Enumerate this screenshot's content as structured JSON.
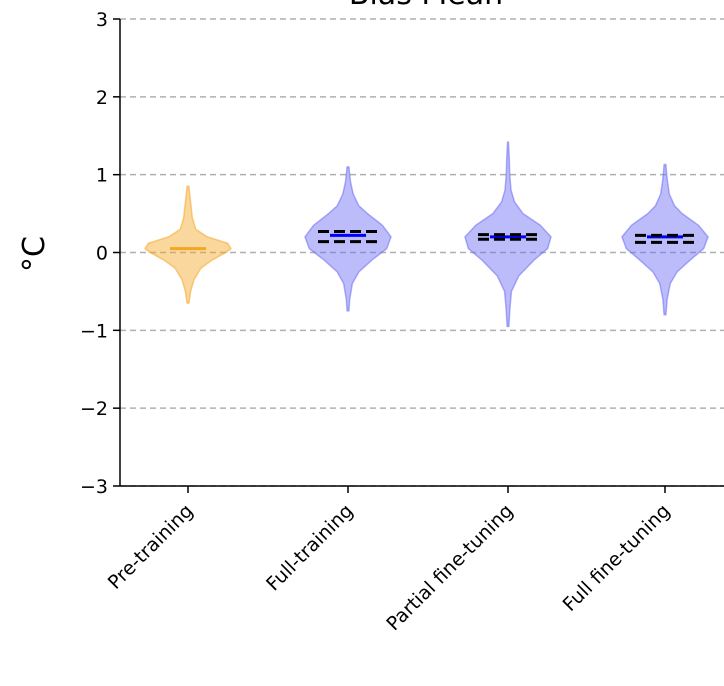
{
  "chart_data": {
    "type": "violin",
    "title": "Bias Mean",
    "ylabel": "°C",
    "xlabel": "",
    "ylim": [
      -3,
      3
    ],
    "yticks": [
      -3,
      -2,
      -1,
      0,
      1,
      2,
      3
    ],
    "ytick_labels": [
      "−3",
      "−2",
      "−1",
      "0",
      "1",
      "2",
      "3"
    ],
    "grid": "y-dashed",
    "categories": [
      "Pre-training",
      "Full-training",
      "Partial fine-tuning",
      "Full fine-tuning"
    ],
    "violins": [
      {
        "category": "Pre-training",
        "color": "#f5a623",
        "line_color": "#f5a623",
        "min": -0.65,
        "max": 0.85,
        "mean": 0.05,
        "quartiles": [],
        "density": [
          [
            -0.65,
            0.02
          ],
          [
            -0.5,
            0.06
          ],
          [
            -0.35,
            0.14
          ],
          [
            -0.2,
            0.3
          ],
          [
            -0.1,
            0.55
          ],
          [
            0.0,
            0.88
          ],
          [
            0.05,
            1.0
          ],
          [
            0.12,
            0.92
          ],
          [
            0.2,
            0.45
          ],
          [
            0.3,
            0.18
          ],
          [
            0.45,
            0.1
          ],
          [
            0.6,
            0.07
          ],
          [
            0.75,
            0.04
          ],
          [
            0.85,
            0.02
          ]
        ]
      },
      {
        "category": "Full-training",
        "color": "#6b6bf5",
        "line_color": "#0000ff",
        "min": -0.75,
        "max": 1.1,
        "mean": 0.22,
        "quartiles": [
          0.14,
          0.27
        ],
        "density": [
          [
            -0.75,
            0.02
          ],
          [
            -0.6,
            0.04
          ],
          [
            -0.4,
            0.1
          ],
          [
            -0.25,
            0.25
          ],
          [
            -0.1,
            0.55
          ],
          [
            0.05,
            0.9
          ],
          [
            0.2,
            1.0
          ],
          [
            0.35,
            0.8
          ],
          [
            0.5,
            0.45
          ],
          [
            0.6,
            0.25
          ],
          [
            0.75,
            0.12
          ],
          [
            0.9,
            0.06
          ],
          [
            1.0,
            0.04
          ],
          [
            1.1,
            0.02
          ]
        ]
      },
      {
        "category": "Partial fine-tuning",
        "color": "#6b6bf5",
        "line_color": "#0000ff",
        "min": -0.95,
        "max": 1.42,
        "mean": 0.2,
        "quartiles": [
          0.17,
          0.23
        ],
        "density": [
          [
            -0.95,
            0.02
          ],
          [
            -0.75,
            0.04
          ],
          [
            -0.5,
            0.08
          ],
          [
            -0.3,
            0.25
          ],
          [
            -0.1,
            0.6
          ],
          [
            0.05,
            0.92
          ],
          [
            0.2,
            1.0
          ],
          [
            0.35,
            0.75
          ],
          [
            0.5,
            0.35
          ],
          [
            0.65,
            0.15
          ],
          [
            0.8,
            0.07
          ],
          [
            1.0,
            0.04
          ],
          [
            1.2,
            0.03
          ],
          [
            1.42,
            0.01
          ]
        ]
      },
      {
        "category": "Full fine-tuning",
        "color": "#6b6bf5",
        "line_color": "#0000ff",
        "min": -0.8,
        "max": 1.13,
        "mean": 0.2,
        "quartiles": [
          0.13,
          0.22
        ],
        "density": [
          [
            -0.8,
            0.02
          ],
          [
            -0.6,
            0.05
          ],
          [
            -0.4,
            0.12
          ],
          [
            -0.25,
            0.28
          ],
          [
            -0.1,
            0.58
          ],
          [
            0.05,
            0.9
          ],
          [
            0.2,
            1.0
          ],
          [
            0.35,
            0.78
          ],
          [
            0.5,
            0.4
          ],
          [
            0.6,
            0.22
          ],
          [
            0.75,
            0.1
          ],
          [
            0.9,
            0.06
          ],
          [
            1.0,
            0.04
          ],
          [
            1.13,
            0.02
          ]
        ]
      }
    ]
  }
}
